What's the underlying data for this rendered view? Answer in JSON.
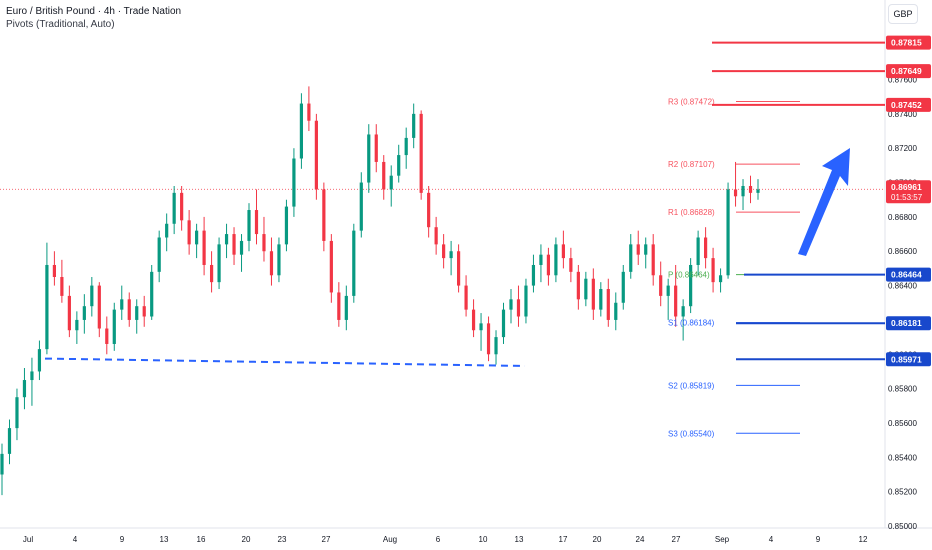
{
  "header": {
    "title": "Euro / British Pound · 4h · Trade Nation",
    "indicator": "Pivots (Traditional, Auto)"
  },
  "currency": "GBP",
  "colors": {
    "up": "#089981",
    "down": "#f23645",
    "red_level": "#f23645",
    "blue_level": "#1848cc",
    "pivot_red": "#f7525f",
    "pivot_blue": "#2962ff",
    "pivot_green": "#4caf50",
    "arrow": "#2962ff",
    "axis_text": "#131722"
  },
  "chart_data": {
    "type": "candlestick",
    "symbol": "EURGBP",
    "timeframe": "4h",
    "y_ticks": [
      "0.87600",
      "0.87400",
      "0.87200",
      "0.87000",
      "0.86800",
      "0.86600",
      "0.86400",
      "0.86200",
      "0.86000",
      "0.85800",
      "0.85600",
      "0.85400",
      "0.85200",
      "0.85000"
    ],
    "x_ticks": [
      "Jul",
      "4",
      "9",
      "13",
      "16",
      "20",
      "23",
      "27",
      "Aug",
      "6",
      "10",
      "13",
      "17",
      "20",
      "24",
      "27",
      "Sep",
      "4",
      "9",
      "12"
    ],
    "ylim": [
      0.85,
      0.879
    ],
    "current_price": "0.86961",
    "countdown": "01:53:57",
    "price_levels": [
      {
        "label": "0.87815",
        "value": 0.87815,
        "color": "red"
      },
      {
        "label": "0.87649",
        "value": 0.87649,
        "color": "red"
      },
      {
        "label": "0.87452",
        "value": 0.87452,
        "color": "red"
      },
      {
        "label": "0.86464",
        "value": 0.86464,
        "color": "blue"
      },
      {
        "label": "0.86181",
        "value": 0.86181,
        "color": "blue"
      },
      {
        "label": "0.85971",
        "value": 0.85971,
        "color": "blue"
      }
    ],
    "pivots": [
      {
        "name": "R3",
        "value": 0.87472,
        "text": "R3 (0.87472)",
        "color": "red"
      },
      {
        "name": "R2",
        "value": 0.87107,
        "text": "R2 (0.87107)",
        "color": "red"
      },
      {
        "name": "R1",
        "value": 0.86828,
        "text": "R1 (0.86828)",
        "color": "red"
      },
      {
        "name": "P",
        "value": 0.86464,
        "text": "P (0.86464)",
        "color": "green"
      },
      {
        "name": "S1",
        "value": 0.86184,
        "text": "S1 (0.86184)",
        "color": "blue"
      },
      {
        "name": "S2",
        "value": 0.85819,
        "text": "S2 (0.85819)",
        "color": "blue"
      },
      {
        "name": "S3",
        "value": 0.8554,
        "text": "S3 (0.85540)",
        "color": "blue"
      },
      {
        "name": "PrevS",
        "value": 0.8573,
        "text": "",
        "color": "blue"
      }
    ],
    "candles": [
      {
        "o": 0.853,
        "h": 0.8548,
        "l": 0.8518,
        "c": 0.8542
      },
      {
        "o": 0.8542,
        "h": 0.8562,
        "l": 0.8536,
        "c": 0.8557
      },
      {
        "o": 0.8557,
        "h": 0.858,
        "l": 0.855,
        "c": 0.8575
      },
      {
        "o": 0.8575,
        "h": 0.8592,
        "l": 0.8568,
        "c": 0.8585
      },
      {
        "o": 0.8585,
        "h": 0.8598,
        "l": 0.857,
        "c": 0.859
      },
      {
        "o": 0.859,
        "h": 0.8608,
        "l": 0.8585,
        "c": 0.8603
      },
      {
        "o": 0.8603,
        "h": 0.8665,
        "l": 0.86,
        "c": 0.8652
      },
      {
        "o": 0.8652,
        "h": 0.866,
        "l": 0.864,
        "c": 0.8645
      },
      {
        "o": 0.8645,
        "h": 0.8655,
        "l": 0.863,
        "c": 0.8634
      },
      {
        "o": 0.8634,
        "h": 0.864,
        "l": 0.861,
        "c": 0.8614
      },
      {
        "o": 0.8614,
        "h": 0.8625,
        "l": 0.8606,
        "c": 0.862
      },
      {
        "o": 0.862,
        "h": 0.8635,
        "l": 0.8612,
        "c": 0.8628
      },
      {
        "o": 0.8628,
        "h": 0.8645,
        "l": 0.8622,
        "c": 0.864
      },
      {
        "o": 0.864,
        "h": 0.8642,
        "l": 0.861,
        "c": 0.8615
      },
      {
        "o": 0.8615,
        "h": 0.8622,
        "l": 0.86,
        "c": 0.8606
      },
      {
        "o": 0.8606,
        "h": 0.863,
        "l": 0.8602,
        "c": 0.8626
      },
      {
        "o": 0.8626,
        "h": 0.864,
        "l": 0.862,
        "c": 0.8632
      },
      {
        "o": 0.8632,
        "h": 0.8636,
        "l": 0.8616,
        "c": 0.862
      },
      {
        "o": 0.862,
        "h": 0.8632,
        "l": 0.8612,
        "c": 0.8628
      },
      {
        "o": 0.8628,
        "h": 0.8634,
        "l": 0.8616,
        "c": 0.8622
      },
      {
        "o": 0.8622,
        "h": 0.8652,
        "l": 0.862,
        "c": 0.8648
      },
      {
        "o": 0.8648,
        "h": 0.8672,
        "l": 0.8642,
        "c": 0.8668
      },
      {
        "o": 0.8668,
        "h": 0.8682,
        "l": 0.866,
        "c": 0.8676
      },
      {
        "o": 0.8676,
        "h": 0.8698,
        "l": 0.867,
        "c": 0.8694
      },
      {
        "o": 0.8694,
        "h": 0.8698,
        "l": 0.8672,
        "c": 0.8678
      },
      {
        "o": 0.8678,
        "h": 0.8684,
        "l": 0.8658,
        "c": 0.8664
      },
      {
        "o": 0.8664,
        "h": 0.8676,
        "l": 0.8656,
        "c": 0.8672
      },
      {
        "o": 0.8672,
        "h": 0.868,
        "l": 0.8646,
        "c": 0.8652
      },
      {
        "o": 0.8652,
        "h": 0.866,
        "l": 0.8636,
        "c": 0.8642
      },
      {
        "o": 0.8642,
        "h": 0.8668,
        "l": 0.8638,
        "c": 0.8664
      },
      {
        "o": 0.8664,
        "h": 0.8676,
        "l": 0.8656,
        "c": 0.867
      },
      {
        "o": 0.867,
        "h": 0.8674,
        "l": 0.8652,
        "c": 0.8658
      },
      {
        "o": 0.8658,
        "h": 0.867,
        "l": 0.8648,
        "c": 0.8666
      },
      {
        "o": 0.8666,
        "h": 0.8688,
        "l": 0.866,
        "c": 0.8684
      },
      {
        "o": 0.8684,
        "h": 0.8696,
        "l": 0.8664,
        "c": 0.867
      },
      {
        "o": 0.867,
        "h": 0.868,
        "l": 0.8654,
        "c": 0.866
      },
      {
        "o": 0.866,
        "h": 0.8668,
        "l": 0.864,
        "c": 0.8646
      },
      {
        "o": 0.8646,
        "h": 0.8668,
        "l": 0.8642,
        "c": 0.8664
      },
      {
        "o": 0.8664,
        "h": 0.869,
        "l": 0.866,
        "c": 0.8686
      },
      {
        "o": 0.8686,
        "h": 0.872,
        "l": 0.868,
        "c": 0.8714
      },
      {
        "o": 0.8714,
        "h": 0.8752,
        "l": 0.8708,
        "c": 0.8746
      },
      {
        "o": 0.8746,
        "h": 0.8756,
        "l": 0.873,
        "c": 0.8736
      },
      {
        "o": 0.8736,
        "h": 0.874,
        "l": 0.869,
        "c": 0.8696
      },
      {
        "o": 0.8696,
        "h": 0.87,
        "l": 0.866,
        "c": 0.8666
      },
      {
        "o": 0.8666,
        "h": 0.867,
        "l": 0.863,
        "c": 0.8636
      },
      {
        "o": 0.8636,
        "h": 0.8642,
        "l": 0.8616,
        "c": 0.862
      },
      {
        "o": 0.862,
        "h": 0.864,
        "l": 0.8614,
        "c": 0.8634
      },
      {
        "o": 0.8634,
        "h": 0.8676,
        "l": 0.863,
        "c": 0.8672
      },
      {
        "o": 0.8672,
        "h": 0.8706,
        "l": 0.8668,
        "c": 0.87
      },
      {
        "o": 0.87,
        "h": 0.8734,
        "l": 0.8694,
        "c": 0.8728
      },
      {
        "o": 0.8728,
        "h": 0.8734,
        "l": 0.8706,
        "c": 0.8712
      },
      {
        "o": 0.8712,
        "h": 0.8716,
        "l": 0.869,
        "c": 0.8696
      },
      {
        "o": 0.8696,
        "h": 0.871,
        "l": 0.8686,
        "c": 0.8704
      },
      {
        "o": 0.8704,
        "h": 0.8722,
        "l": 0.87,
        "c": 0.8716
      },
      {
        "o": 0.8716,
        "h": 0.8732,
        "l": 0.8708,
        "c": 0.8726
      },
      {
        "o": 0.8726,
        "h": 0.8746,
        "l": 0.872,
        "c": 0.874
      },
      {
        "o": 0.874,
        "h": 0.8742,
        "l": 0.869,
        "c": 0.8694
      },
      {
        "o": 0.8694,
        "h": 0.8698,
        "l": 0.8668,
        "c": 0.8674
      },
      {
        "o": 0.8674,
        "h": 0.868,
        "l": 0.8658,
        "c": 0.8664
      },
      {
        "o": 0.8664,
        "h": 0.867,
        "l": 0.865,
        "c": 0.8656
      },
      {
        "o": 0.8656,
        "h": 0.8666,
        "l": 0.8646,
        "c": 0.866
      },
      {
        "o": 0.866,
        "h": 0.8664,
        "l": 0.8636,
        "c": 0.864
      },
      {
        "o": 0.864,
        "h": 0.8646,
        "l": 0.8622,
        "c": 0.8626
      },
      {
        "o": 0.8626,
        "h": 0.8632,
        "l": 0.861,
        "c": 0.8614
      },
      {
        "o": 0.8614,
        "h": 0.8624,
        "l": 0.8602,
        "c": 0.8618
      },
      {
        "o": 0.8618,
        "h": 0.8622,
        "l": 0.8596,
        "c": 0.86
      },
      {
        "o": 0.86,
        "h": 0.8614,
        "l": 0.8594,
        "c": 0.861
      },
      {
        "o": 0.861,
        "h": 0.863,
        "l": 0.8606,
        "c": 0.8626
      },
      {
        "o": 0.8626,
        "h": 0.8638,
        "l": 0.8618,
        "c": 0.8632
      },
      {
        "o": 0.8632,
        "h": 0.864,
        "l": 0.8616,
        "c": 0.8622
      },
      {
        "o": 0.8622,
        "h": 0.8644,
        "l": 0.8618,
        "c": 0.864
      },
      {
        "o": 0.864,
        "h": 0.8658,
        "l": 0.8636,
        "c": 0.8652
      },
      {
        "o": 0.8652,
        "h": 0.8664,
        "l": 0.8642,
        "c": 0.8658
      },
      {
        "o": 0.8658,
        "h": 0.8662,
        "l": 0.864,
        "c": 0.8646
      },
      {
        "o": 0.8646,
        "h": 0.8668,
        "l": 0.8642,
        "c": 0.8664
      },
      {
        "o": 0.8664,
        "h": 0.8672,
        "l": 0.865,
        "c": 0.8656
      },
      {
        "o": 0.8656,
        "h": 0.8662,
        "l": 0.8642,
        "c": 0.8648
      },
      {
        "o": 0.8648,
        "h": 0.8652,
        "l": 0.8626,
        "c": 0.8632
      },
      {
        "o": 0.8632,
        "h": 0.8648,
        "l": 0.8628,
        "c": 0.8644
      },
      {
        "o": 0.8644,
        "h": 0.865,
        "l": 0.862,
        "c": 0.8626
      },
      {
        "o": 0.8626,
        "h": 0.8642,
        "l": 0.8622,
        "c": 0.8638
      },
      {
        "o": 0.8638,
        "h": 0.8644,
        "l": 0.8616,
        "c": 0.862
      },
      {
        "o": 0.862,
        "h": 0.8636,
        "l": 0.8614,
        "c": 0.863
      },
      {
        "o": 0.863,
        "h": 0.8652,
        "l": 0.8626,
        "c": 0.8648
      },
      {
        "o": 0.8648,
        "h": 0.867,
        "l": 0.8644,
        "c": 0.8664
      },
      {
        "o": 0.8664,
        "h": 0.8672,
        "l": 0.8652,
        "c": 0.8658
      },
      {
        "o": 0.8658,
        "h": 0.8668,
        "l": 0.865,
        "c": 0.8664
      },
      {
        "o": 0.8664,
        "h": 0.867,
        "l": 0.864,
        "c": 0.8646
      },
      {
        "o": 0.8646,
        "h": 0.8654,
        "l": 0.8628,
        "c": 0.8634
      },
      {
        "o": 0.8634,
        "h": 0.8644,
        "l": 0.862,
        "c": 0.864
      },
      {
        "o": 0.864,
        "h": 0.8652,
        "l": 0.8616,
        "c": 0.8622
      },
      {
        "o": 0.8622,
        "h": 0.8632,
        "l": 0.8608,
        "c": 0.8628
      },
      {
        "o": 0.8628,
        "h": 0.8656,
        "l": 0.8624,
        "c": 0.8652
      },
      {
        "o": 0.8652,
        "h": 0.8672,
        "l": 0.8646,
        "c": 0.8668
      },
      {
        "o": 0.8668,
        "h": 0.8674,
        "l": 0.865,
        "c": 0.8656
      },
      {
        "o": 0.8656,
        "h": 0.8662,
        "l": 0.8636,
        "c": 0.8642
      },
      {
        "o": 0.8642,
        "h": 0.865,
        "l": 0.8636,
        "c": 0.8646
      },
      {
        "o": 0.8646,
        "h": 0.87,
        "l": 0.8644,
        "c": 0.8696
      },
      {
        "o": 0.8696,
        "h": 0.8712,
        "l": 0.8686,
        "c": 0.8692
      },
      {
        "o": 0.8692,
        "h": 0.8702,
        "l": 0.8684,
        "c": 0.8698
      },
      {
        "o": 0.8698,
        "h": 0.8704,
        "l": 0.8688,
        "c": 0.8694
      },
      {
        "o": 0.8694,
        "h": 0.8702,
        "l": 0.869,
        "c": 0.8696
      }
    ]
  }
}
